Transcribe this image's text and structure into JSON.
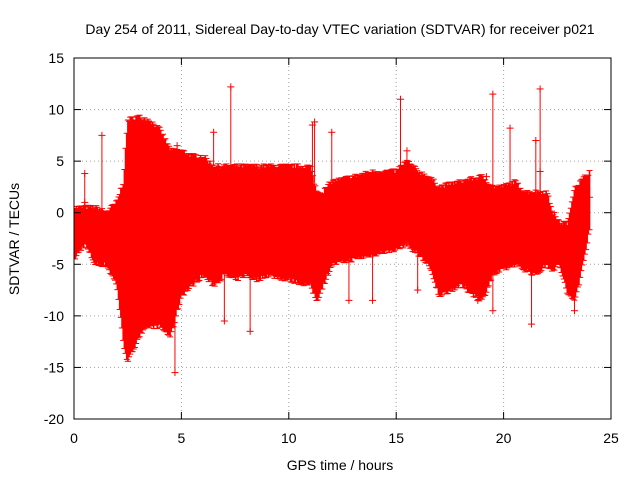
{
  "chart_data": {
    "type": "scatter",
    "title": "Day 254 of 2011, Sidereal Day-to-day VTEC variation (SDTVAR) for receiver p021",
    "xlabel": "GPS time / hours",
    "ylabel": "SDTVAR / TECUs",
    "xlim": [
      0,
      25
    ],
    "ylim": [
      -20,
      15
    ],
    "xticks": [
      0,
      5,
      10,
      15,
      20,
      25
    ],
    "yticks": [
      -20,
      -15,
      -10,
      -5,
      0,
      5,
      10,
      15
    ],
    "grid": true,
    "color": "#ff0000",
    "marker": "+",
    "series": [
      {
        "name": "p021",
        "envelope": {
          "x": [
            0.0,
            0.5,
            1.0,
            1.5,
            2.0,
            2.3,
            2.5,
            3.0,
            3.5,
            4.0,
            4.5,
            5.0,
            5.5,
            6.0,
            6.5,
            7.0,
            7.5,
            8.0,
            8.5,
            9.0,
            10.0,
            11.0,
            11.3,
            11.6,
            12.0,
            13.0,
            14.0,
            15.0,
            15.5,
            16.0,
            16.5,
            17.0,
            18.0,
            19.0,
            19.5,
            20.0,
            20.5,
            21.0,
            21.5,
            22.0,
            22.3,
            22.6,
            23.0,
            23.3,
            23.6,
            24.0
          ],
          "upper": [
            0.5,
            0.5,
            0.5,
            0.0,
            1.0,
            3.0,
            9.0,
            9.3,
            9.0,
            8.0,
            6.0,
            6.0,
            5.5,
            5.5,
            4.5,
            4.5,
            4.5,
            4.5,
            4.5,
            4.5,
            4.5,
            4.5,
            2.0,
            2.0,
            3.0,
            3.5,
            4.0,
            4.0,
            5.0,
            4.0,
            3.5,
            2.5,
            3.0,
            3.5,
            2.5,
            2.5,
            3.0,
            2.0,
            2.0,
            2.0,
            0.0,
            -1.0,
            -1.0,
            2.5,
            3.0,
            4.0
          ],
          "lower": [
            -4.5,
            -3.0,
            -5.0,
            -5.0,
            -7.0,
            -12.5,
            -14.5,
            -12.0,
            -11.0,
            -11.0,
            -12.0,
            -8.0,
            -7.0,
            -6.0,
            -7.0,
            -6.0,
            -6.5,
            -6.0,
            -6.5,
            -6.0,
            -6.5,
            -7.0,
            -8.5,
            -7.0,
            -5.0,
            -4.5,
            -4.0,
            -3.5,
            -3.0,
            -4.0,
            -5.0,
            -8.0,
            -7.0,
            -8.5,
            -6.0,
            -5.5,
            -5.0,
            -5.5,
            -6.0,
            -5.0,
            -5.5,
            -5.0,
            -8.0,
            -8.5,
            -6.0,
            -1.5
          ]
        },
        "points": [
          [
            0.5,
            3.8
          ],
          [
            0.5,
            1.0
          ],
          [
            1.3,
            7.5
          ],
          [
            4.7,
            -15.5
          ],
          [
            4.8,
            6.5
          ],
          [
            5.5,
            -5.0
          ],
          [
            6.5,
            7.8
          ],
          [
            7.0,
            -10.5
          ],
          [
            7.3,
            12.2
          ],
          [
            8.2,
            -11.5
          ],
          [
            9.5,
            -6.0
          ],
          [
            11.1,
            8.5
          ],
          [
            11.2,
            8.8
          ],
          [
            12.0,
            7.8
          ],
          [
            12.8,
            -8.5
          ],
          [
            13.9,
            -8.5
          ],
          [
            15.2,
            11.0
          ],
          [
            15.5,
            6.0
          ],
          [
            16.0,
            -7.5
          ],
          [
            18.8,
            -8.5
          ],
          [
            19.2,
            3.5
          ],
          [
            19.5,
            11.5
          ],
          [
            19.5,
            -9.5
          ],
          [
            20.3,
            8.2
          ],
          [
            21.3,
            -10.8
          ],
          [
            21.5,
            7.0
          ],
          [
            21.7,
            12.0
          ],
          [
            21.7,
            4.0
          ],
          [
            23.3,
            -9.5
          ],
          [
            24.0,
            1.5
          ]
        ]
      }
    ]
  }
}
